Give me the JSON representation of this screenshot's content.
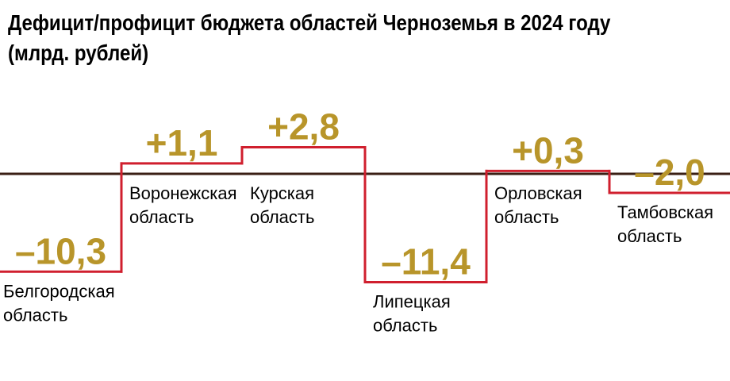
{
  "chart_data": {
    "type": "step",
    "title_line1": "Дефицит/профицит бюджета областей Черноземья в 2024 году",
    "title_line2": "(млрд. рублей)",
    "categories": [
      [
        "Белгородская",
        "область"
      ],
      [
        "Воронежская",
        "область"
      ],
      [
        "Курская",
        "область"
      ],
      [
        "Липецкая",
        "область"
      ],
      [
        "Орловская",
        "область"
      ],
      [
        "Тамбовская",
        "область"
      ]
    ],
    "values": [
      -10.3,
      1.1,
      2.8,
      -11.4,
      0.3,
      -2.0
    ],
    "value_labels": [
      "–10,3",
      "+1,1",
      "+2,8",
      "–11,4",
      "+0,3",
      "–2,0"
    ],
    "baseline": 0,
    "colors": {
      "step_line": "#d01f2e",
      "baseline": "#3a1f14",
      "labels": "#b8952a"
    }
  }
}
